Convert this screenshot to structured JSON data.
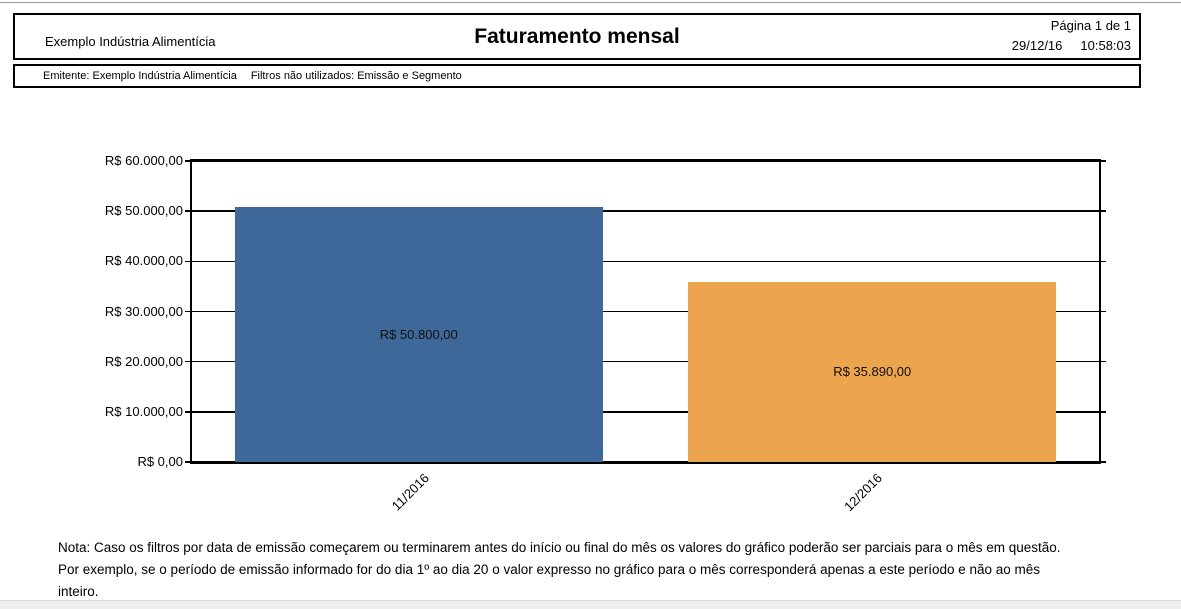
{
  "page": {
    "header": {
      "company": "Exemplo Indústria Alimentícia",
      "title": "Faturamento mensal",
      "page_info": "Página 1 de 1",
      "date": "29/12/16",
      "time": "10:58:03"
    },
    "subheader": {
      "emitente": "Emitente: Exemplo Indústria Alimentícia",
      "filters": "Filtros não utilizados: Emissão e Segmento"
    },
    "note": {
      "lines": [
        "Nota: Caso os filtros por data de emissão começarem ou terminarem antes do início ou final do mês os valores do gráfico poderão ser parciais para o mês em questão.",
        "Por exemplo, se o período de emissão informado for do dia 1º ao dia 20 o valor expresso no gráfico para o mês corresponderá apenas a este período e não ao mês",
        "inteiro."
      ]
    }
  },
  "chart_data": {
    "type": "bar",
    "title": "Faturamento mensal",
    "categories": [
      "11/2016",
      "12/2016"
    ],
    "values": [
      50800,
      35890
    ],
    "bar_labels": [
      "R$ 50.800,00",
      "R$ 35.890,00"
    ],
    "bar_colors": [
      "#3E6899",
      "#EDA44E"
    ],
    "y_tick_labels": [
      "R$ 60.000,00",
      "R$ 50.000,00",
      "R$ 40.000,00",
      "R$ 30.000,00",
      "R$ 20.000,00",
      "R$ 10.000,00",
      "R$ 0,00"
    ],
    "ylim": [
      0,
      60000
    ],
    "y_tick_step": 10000,
    "xlabel": "",
    "ylabel": "",
    "grid": true,
    "legend": "none",
    "currency": "BRL"
  }
}
